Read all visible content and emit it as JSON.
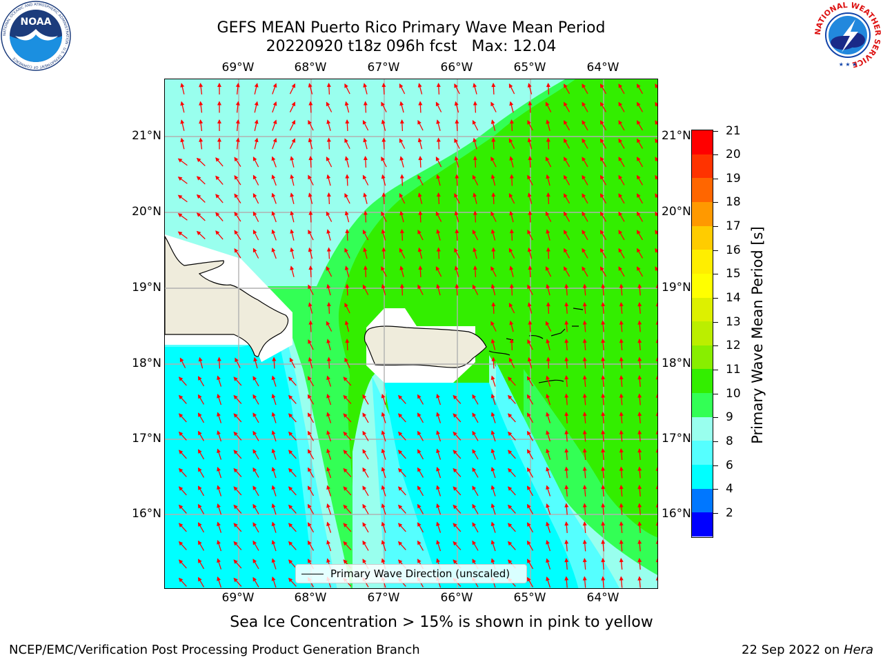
{
  "title": {
    "line1": "GEFS MEAN Puerto Rico Primary Wave Mean Period",
    "line2": "20220920 t18z 096h fcst   Max: 12.04"
  },
  "map": {
    "lon_ticks": [
      "69°W",
      "68°W",
      "67°W",
      "66°W",
      "65°W",
      "64°W"
    ],
    "lat_ticks": [
      "21°N",
      "20°N",
      "19°N",
      "18°N",
      "17°N",
      "16°N"
    ],
    "field_colors": {
      "green_11_12": "#33ee00",
      "green_10_11": "#33ff55",
      "aqua_9_10": "#99ffee",
      "cyan_8_9": "#55ffff",
      "cyan_6_8": "#00ffff",
      "land": "#efecdc",
      "grid": "#b0b0b0",
      "arrow": "#ff0000",
      "coast": "#000000"
    },
    "arrow_icon": "red-direction-arrow-icon"
  },
  "legend": {
    "label": "Primary Wave Direction (unscaled)"
  },
  "colorbar": {
    "title": "Primary Wave Mean Period [s]",
    "tick_labels": [
      "21",
      "20",
      "19",
      "18",
      "17",
      "16",
      "15",
      "14",
      "13",
      "12",
      "11",
      "10",
      "9",
      "8",
      "6",
      "4",
      "2"
    ],
    "colors": [
      "#ff0000",
      "#ff3300",
      "#ff6600",
      "#ff9900",
      "#ffcc00",
      "#ffee00",
      "#ffff00",
      "#ddf000",
      "#bbee00",
      "#88ee00",
      "#33ee00",
      "#33ff55",
      "#99ffee",
      "#55ffff",
      "#00ffff",
      "#0077ff",
      "#0000ff"
    ]
  },
  "footnote": "Sea Ice Concentration > 15% is shown in pink to yellow",
  "credits": {
    "left": "NCEP/EMC/Verification Post Processing Product Generation Branch",
    "right_prefix": "22 Sep 2022 on ",
    "right_machine": "Hera"
  },
  "logos": {
    "noaa": {
      "text": "NOAA",
      "ring_text": "NATIONAL OCEANIC AND ATMOSPHERIC ADMINISTRATION · U.S. DEPARTMENT OF COMMERCE"
    },
    "nws": {
      "ring_text": "NATIONAL WEATHER SERVICE"
    }
  }
}
